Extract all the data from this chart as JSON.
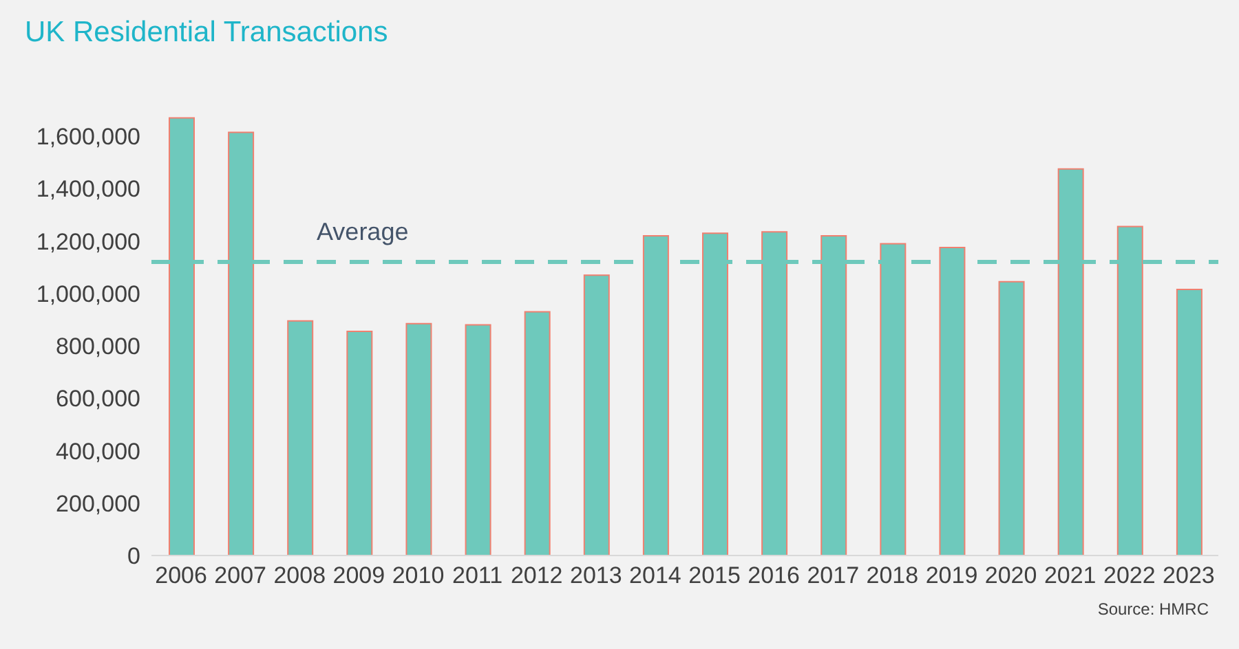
{
  "chart_data": {
    "type": "bar",
    "title": "UK Residential Transactions",
    "categories": [
      "2006",
      "2007",
      "2008",
      "2009",
      "2010",
      "2011",
      "2012",
      "2013",
      "2014",
      "2015",
      "2016",
      "2017",
      "2018",
      "2019",
      "2020",
      "2021",
      "2022",
      "2023"
    ],
    "values": [
      1670000,
      1615000,
      895000,
      855000,
      885000,
      880000,
      930000,
      1070000,
      1220000,
      1230000,
      1235000,
      1220000,
      1190000,
      1175000,
      1045000,
      1475000,
      1255000,
      1015000
    ],
    "color": "#6ec9bc",
    "ylim": [
      0,
      1700000
    ],
    "yticks": [
      0,
      {
        "value": 200000,
        "label": "200,000"
      },
      {
        "value": 400000,
        "label": "400,000"
      },
      {
        "value": 600000,
        "label": "600,000"
      },
      {
        "value": 800000,
        "label": "800,000"
      },
      {
        "value": 1000000,
        "label": "1,000,000"
      },
      {
        "value": 1200000,
        "label": "1,200,000"
      },
      {
        "value": 1400000,
        "label": "1,400,000"
      },
      {
        "value": 1600000,
        "label": "1,600,000"
      }
    ],
    "grid": false,
    "legend": false,
    "ref_lines": [
      {
        "axis": "y",
        "value": 1120000,
        "label": "Average",
        "color": "#6ec9bc",
        "line_style": "dashed"
      }
    ],
    "annotations": [
      "Source: HMRC"
    ]
  }
}
